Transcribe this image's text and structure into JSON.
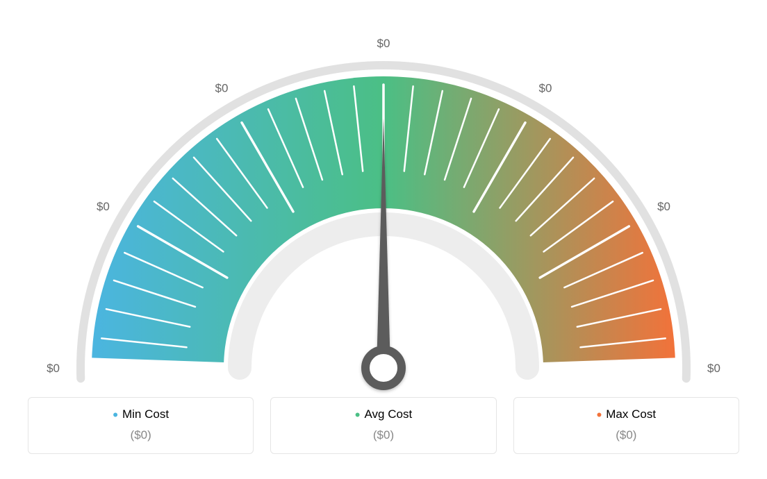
{
  "gauge": {
    "type": "gauge",
    "background_color": "#ffffff",
    "tick_labels": [
      "$0",
      "$0",
      "$0",
      "$0",
      "$0",
      "$0",
      "$0"
    ],
    "tick_label_color": "#666666",
    "tick_label_fontsize": 17,
    "colors": {
      "min": "#4bb5e0",
      "mid": "#4bbf85",
      "max": "#f2723a"
    },
    "outer_ring_color": "#e1e1e1",
    "inner_ring_color": "#ededed",
    "tick_mark_color": "#ffffff",
    "needle_color": "#5b5b5b",
    "needle_angle_deg": 90,
    "arc": {
      "start_deg": 180,
      "end_deg": 0,
      "outer_r": 420,
      "inner_r": 230
    },
    "major_tick_count": 7,
    "minor_ticks_between": 4
  },
  "legend": {
    "items": [
      {
        "key": "min",
        "label": "Min Cost",
        "value": "($0)",
        "color": "#4bb5e0"
      },
      {
        "key": "avg",
        "label": "Avg Cost",
        "value": "($0)",
        "color": "#4bbf85"
      },
      {
        "key": "max",
        "label": "Max Cost",
        "value": "($0)",
        "color": "#f2723a"
      }
    ],
    "card_border_color": "#e5e5e5",
    "value_color": "#888888"
  }
}
